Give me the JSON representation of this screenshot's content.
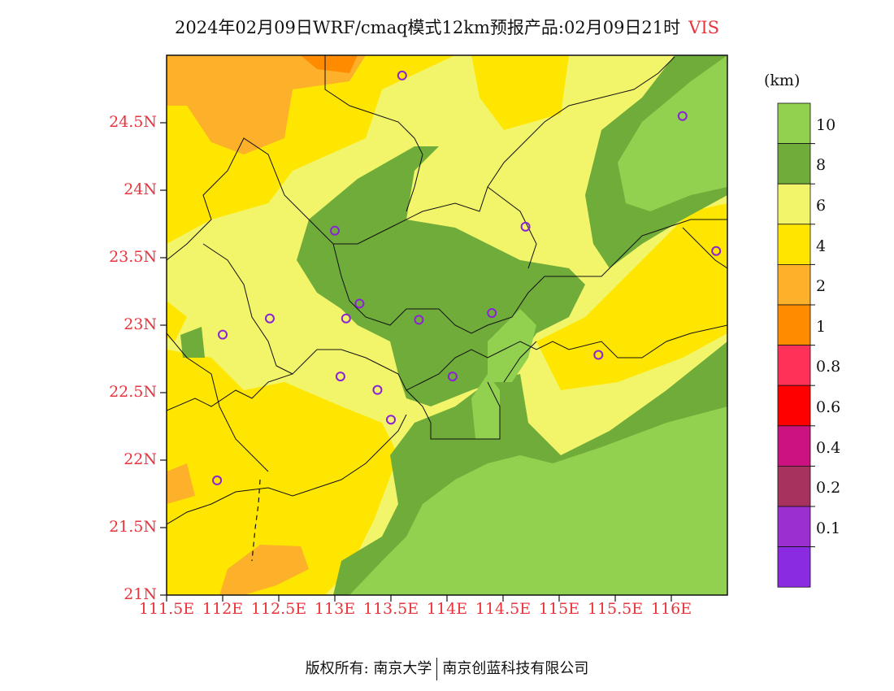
{
  "title": {
    "main": "2024年02月09日WRF/cmaq模式12km预报产品:02月09日21时",
    "variable": "VIS"
  },
  "map": {
    "y_labels": [
      "24.5N",
      "24N",
      "23.5N",
      "23N",
      "22.5N",
      "22N",
      "21.5N",
      "21N"
    ],
    "x_labels": [
      "111.5E",
      "112E",
      "112.5E",
      "113E",
      "113.5E",
      "114E",
      "114.5E",
      "115E",
      "115.5E",
      "116E"
    ],
    "lon_range": [
      111.5,
      116.5
    ],
    "lat_range": [
      21.0,
      25.0
    ],
    "stations": [
      {
        "lon": 113.6,
        "lat": 24.85
      },
      {
        "lon": 116.1,
        "lat": 24.55
      },
      {
        "lon": 113.0,
        "lat": 23.7
      },
      {
        "lon": 114.7,
        "lat": 23.73
      },
      {
        "lon": 116.4,
        "lat": 23.55
      },
      {
        "lon": 113.22,
        "lat": 23.16
      },
      {
        "lon": 113.1,
        "lat": 23.05
      },
      {
        "lon": 112.42,
        "lat": 23.05
      },
      {
        "lon": 113.75,
        "lat": 23.04
      },
      {
        "lon": 114.4,
        "lat": 23.09
      },
      {
        "lon": 112.0,
        "lat": 22.93
      },
      {
        "lon": 115.35,
        "lat": 22.78
      },
      {
        "lon": 113.05,
        "lat": 22.62
      },
      {
        "lon": 114.05,
        "lat": 22.62
      },
      {
        "lon": 113.38,
        "lat": 22.52
      },
      {
        "lon": 113.5,
        "lat": 22.3
      },
      {
        "lon": 111.95,
        "lat": 21.85
      }
    ]
  },
  "colorbar": {
    "unit": "(km)",
    "colors": [
      "#92d050",
      "#6fac3a",
      "#f2f56a",
      "#ffe600",
      "#fdb02a",
      "#ff8c00",
      "#ff3158",
      "#ff0000",
      "#cc1280",
      "#a8325e",
      "#9b30d0",
      "#8a2be2"
    ],
    "labels": [
      "10",
      "8",
      "6",
      "4",
      "2",
      "1",
      "0.8",
      "0.6",
      "0.4",
      "0.2",
      "0.1"
    ]
  },
  "footer": {
    "left": "版权所有: 南京大学",
    "right": "南京创蓝科技有限公司"
  }
}
